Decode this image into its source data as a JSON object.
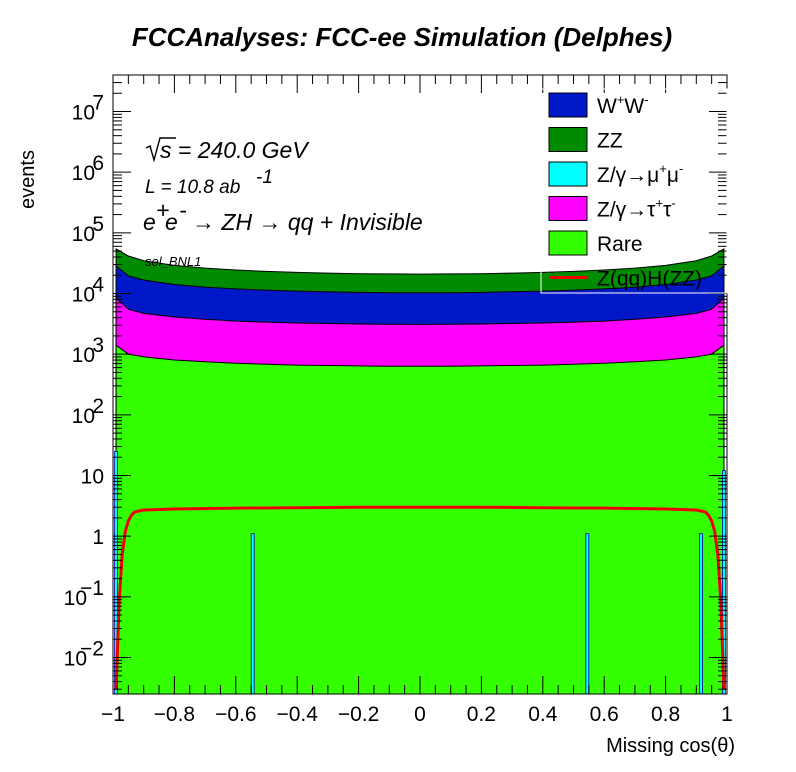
{
  "chart_data": {
    "type": "area",
    "title": "FCCAnalyses: FCC-ee Simulation (Delphes)",
    "xlabel": "Missing cos(θ)",
    "ylabel": "events",
    "ylog": true,
    "xlim": [
      -1,
      1
    ],
    "ylim": [
      0.0025,
      40000000
    ],
    "x_ticks": [
      "−1",
      "−0.8",
      "−0.6",
      "−0.4",
      "−0.2",
      "0",
      "0.2",
      "0.4",
      "0.6",
      "0.8",
      "1"
    ],
    "y_ticks": [
      {
        "base": "10",
        "exp": "−2",
        "value": 0.01
      },
      {
        "base": "10",
        "exp": "−1",
        "value": 0.1
      },
      {
        "base": "1",
        "exp": "",
        "value": 1
      },
      {
        "base": "10",
        "exp": "",
        "value": 10
      },
      {
        "base": "10",
        "exp": "2",
        "value": 100
      },
      {
        "base": "10",
        "exp": "3",
        "value": 1000
      },
      {
        "base": "10",
        "exp": "4",
        "value": 10000
      },
      {
        "base": "10",
        "exp": "5",
        "value": 100000
      },
      {
        "base": "10",
        "exp": "6",
        "value": 1000000
      },
      {
        "base": "10",
        "exp": "7",
        "value": 10000000
      }
    ],
    "annotations": {
      "sqrt_s": "s = 240.0 GeV",
      "lumi": "L = 10.8 ab",
      "lumi_exp": "-1",
      "process": "→ ZH → qq + Invisible",
      "selection": "sel_BNL1"
    },
    "x": [
      -0.99,
      -0.95,
      -0.9,
      -0.8,
      -0.7,
      -0.6,
      -0.5,
      -0.4,
      -0.3,
      -0.2,
      -0.1,
      0.0,
      0.1,
      0.2,
      0.3,
      0.4,
      0.5,
      0.6,
      0.7,
      0.8,
      0.9,
      0.95,
      0.99
    ],
    "series": [
      {
        "name": "Rare",
        "color": "#33ff00",
        "kind": "stack",
        "values": [
          1400,
          1000,
          900,
          800,
          750,
          710,
          680,
          660,
          650,
          640,
          630,
          630,
          630,
          640,
          650,
          660,
          680,
          710,
          750,
          800,
          900,
          1000,
          1400
        ]
      },
      {
        "name": "Z/γ→τ⁺τ⁻",
        "color": "#ff00ff",
        "kind": "stack",
        "values": [
          7000,
          4500,
          3800,
          3300,
          3000,
          2800,
          2700,
          2600,
          2550,
          2500,
          2480,
          2470,
          2480,
          2500,
          2550,
          2600,
          2700,
          2800,
          3000,
          3300,
          3800,
          4500,
          7000
        ]
      },
      {
        "name": "W⁺W⁻",
        "color": "#0018c8",
        "kind": "stack",
        "values": [
          20000,
          14000,
          12000,
          10000,
          9000,
          8400,
          8000,
          7700,
          7500,
          7300,
          7200,
          7200,
          7200,
          7300,
          7500,
          7700,
          8000,
          8400,
          9000,
          10000,
          12000,
          14000,
          20000
        ]
      },
      {
        "name": "ZZ",
        "color": "#008c00",
        "kind": "stack",
        "values": [
          26000,
          22000,
          18000,
          15000,
          13500,
          12500,
          11800,
          11300,
          11000,
          10800,
          10700,
          10600,
          10700,
          10800,
          11000,
          11300,
          11800,
          12500,
          13500,
          15000,
          18000,
          22000,
          26000
        ]
      },
      {
        "name": "Z/γ→μ⁺μ⁻",
        "color": "#00ffff",
        "kind": "spikes",
        "spike_x": [
          -0.99,
          -0.545,
          0.545,
          0.915,
          0.99
        ],
        "spike_y": [
          25,
          1.1,
          1.1,
          1.1,
          12
        ]
      },
      {
        "name": "Z(qq)H(ZZ)",
        "color": "#ee0000",
        "kind": "line",
        "x": [
          -0.99,
          -0.98,
          -0.97,
          -0.96,
          -0.95,
          -0.94,
          -0.93,
          -0.9,
          -0.8,
          -0.6,
          -0.4,
          -0.2,
          0.0,
          0.2,
          0.4,
          0.6,
          0.8,
          0.9,
          0.93,
          0.94,
          0.95,
          0.96,
          0.97,
          0.98,
          0.99
        ],
        "values": [
          0.003,
          0.08,
          0.5,
          1.2,
          1.8,
          2.2,
          2.5,
          2.7,
          2.8,
          2.9,
          2.95,
          3.0,
          3.0,
          3.0,
          2.95,
          2.9,
          2.8,
          2.7,
          2.5,
          2.2,
          1.8,
          1.2,
          0.5,
          0.08,
          0.003
        ]
      }
    ],
    "legend": {
      "position": "top-right",
      "entries": [
        {
          "label": "W",
          "sup1": "+",
          "mid": "W",
          "sup2": "-",
          "color": "#0018c8",
          "kind": "box"
        },
        {
          "label": "ZZ",
          "color": "#008c00",
          "kind": "box"
        },
        {
          "label": "Z/γ→μ",
          "sup1": "+",
          "mid": "μ",
          "sup2": "-",
          "color": "#00ffff",
          "kind": "box"
        },
        {
          "label": "Z/γ→τ",
          "sup1": "+",
          "mid": "τ",
          "sup2": "-",
          "color": "#ff00ff",
          "kind": "box"
        },
        {
          "label": "Rare",
          "color": "#33ff00",
          "kind": "box"
        },
        {
          "label": "Z(qq)H(ZZ)",
          "color": "#ee0000",
          "kind": "line"
        }
      ]
    }
  }
}
